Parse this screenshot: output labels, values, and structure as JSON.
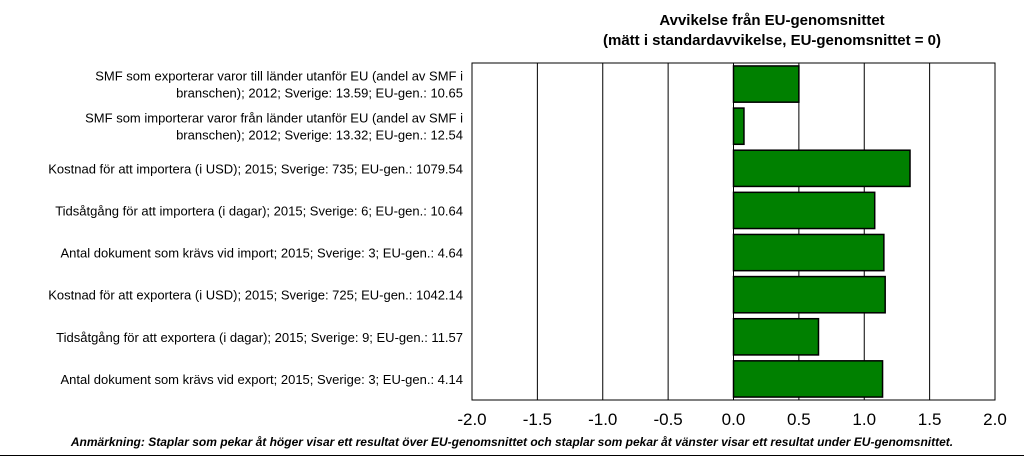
{
  "chart_data": {
    "type": "bar",
    "orientation": "horizontal",
    "title": [
      "Avvikelse från EU-genomsnittet",
      "(mätt i standardavvikelse, EU-genomsnittet = 0)"
    ],
    "categories": [
      [
        "SMF som exporterar varor till länder utanför EU (andel av SMF i",
        "branschen); 2012; Sverige: 13.59; EU-gen.: 10.65"
      ],
      [
        "SMF som importerar varor från länder utanför EU (andel av SMF i",
        "branschen); 2012; Sverige: 13.32; EU-gen.: 12.54"
      ],
      [
        "Kostnad för att importera (i USD); 2015; Sverige: 735; EU-gen.: 1079.54"
      ],
      [
        "Tidsåtgång för att importera (i dagar); 2015; Sverige: 6; EU-gen.: 10.64"
      ],
      [
        "Antal dokument som krävs vid import; 2015; Sverige: 3; EU-gen.: 4.64"
      ],
      [
        "Kostnad för att exportera (i USD); 2015; Sverige: 725; EU-gen.: 1042.14"
      ],
      [
        "Tidsåtgång för att exportera (i dagar); 2015; Sverige: 9; EU-gen.: 11.57"
      ],
      [
        "Antal dokument som krävs vid export; 2015; Sverige: 3; EU-gen.: 4.14"
      ]
    ],
    "values": [
      0.5,
      0.08,
      1.35,
      1.08,
      1.15,
      1.16,
      0.65,
      1.14
    ],
    "xlim": [
      -2.0,
      2.0
    ],
    "xticks": [
      -2.0,
      -1.5,
      -1.0,
      -0.5,
      0.0,
      0.5,
      1.0,
      1.5,
      2.0
    ],
    "xtick_labels": [
      "-2.0",
      "-1.5",
      "-1.0",
      "-0.5",
      "0.0",
      "0.5",
      "1.0",
      "1.5",
      "2.0"
    ],
    "grid": "vertical",
    "bar_color": "#008000",
    "bar_edge_color": "#000000",
    "xlabel": "",
    "ylabel": ""
  },
  "note": "Anmärkning: Staplar som pekar åt höger visar ett resultat över EU-genomsnittet och staplar som pekar åt vänster visar ett resultat under EU-genomsnittet."
}
